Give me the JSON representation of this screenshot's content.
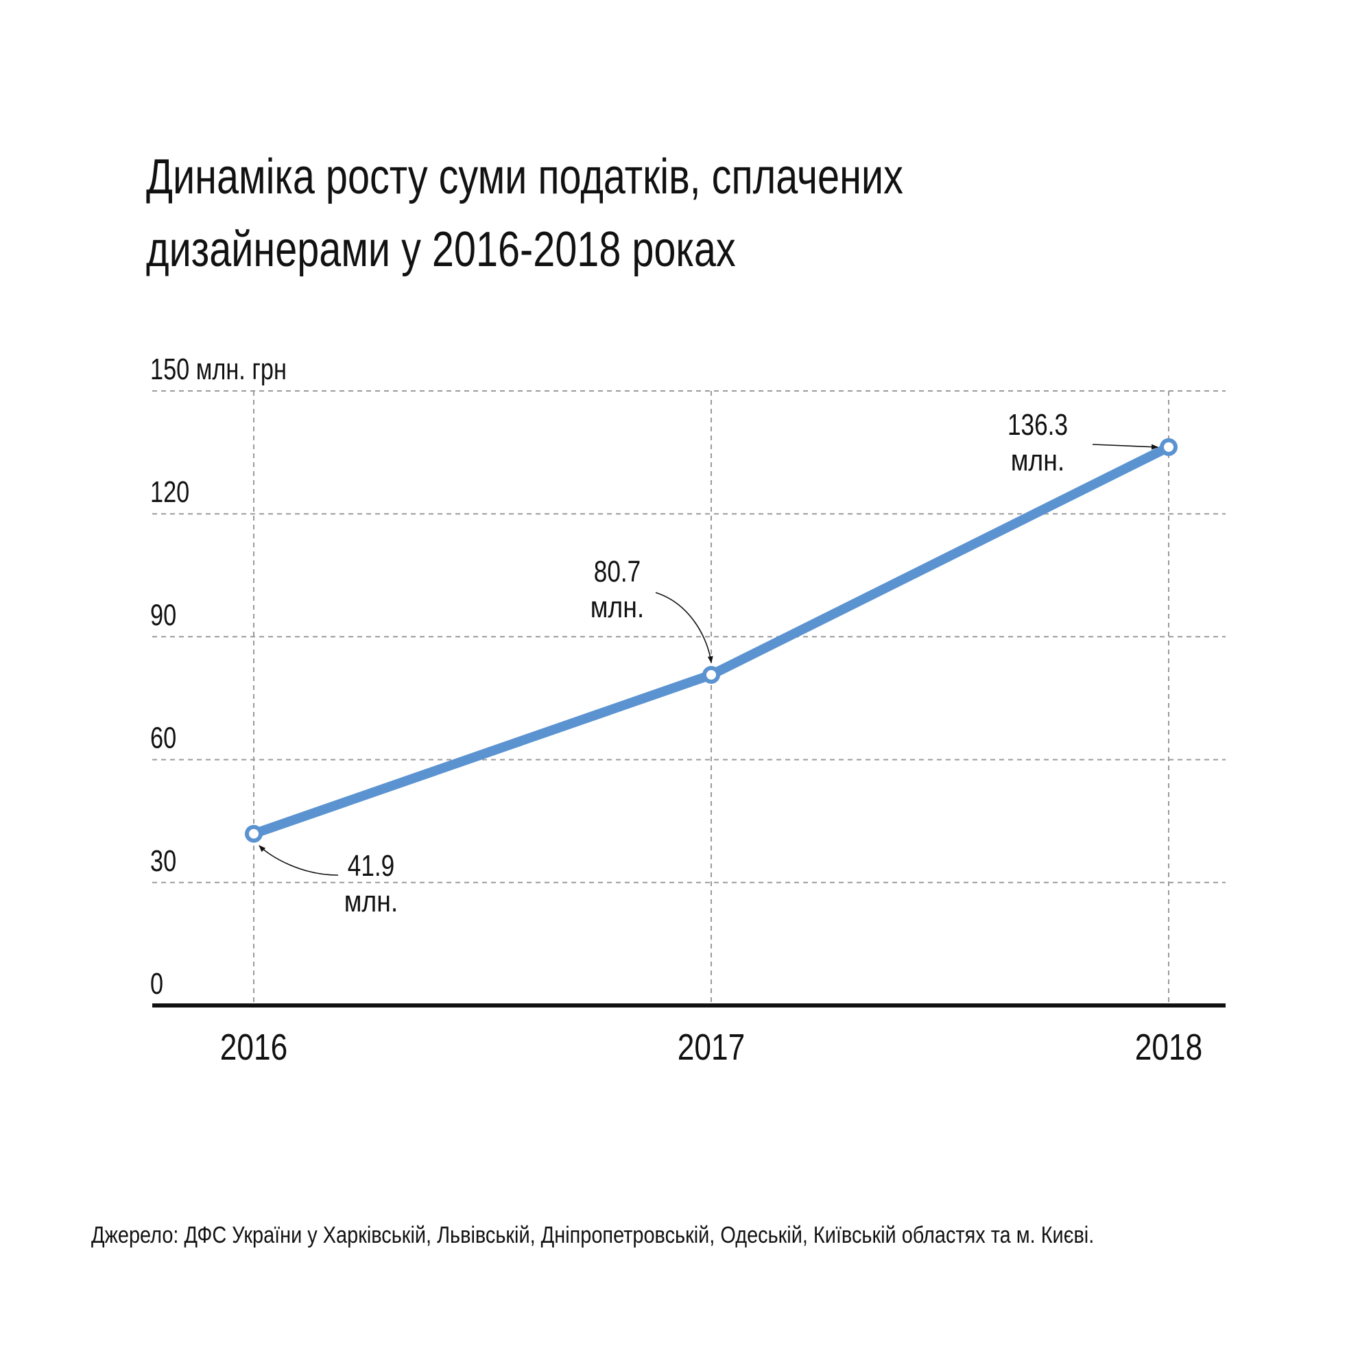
{
  "chart_data": {
    "type": "line",
    "title_lines": [
      "Динаміка росту суми податків, сплачених",
      "дизайнерами у 2016-2018 роках"
    ],
    "x": [
      "2016",
      "2017",
      "2018"
    ],
    "series": [
      {
        "values": [
          41.9,
          80.7,
          136.3
        ],
        "color": "#5b93d1"
      }
    ],
    "ylim": [
      0,
      150
    ],
    "yticks": [
      0,
      30,
      60,
      90,
      120,
      150
    ],
    "ytick_labels": [
      "0",
      "30",
      "60",
      "90",
      "120",
      "150 млн. грн"
    ],
    "annotations": [
      {
        "value": "41.9",
        "unit": "млн."
      },
      {
        "value": "80.7",
        "unit": "млн."
      },
      {
        "value": "136.3",
        "unit": "млн."
      }
    ],
    "grid": true,
    "source": "Джерело: ДФС України у Харківській, Львівській, Дніпропетровській, Одеській, Київській областях та м. Києві."
  }
}
